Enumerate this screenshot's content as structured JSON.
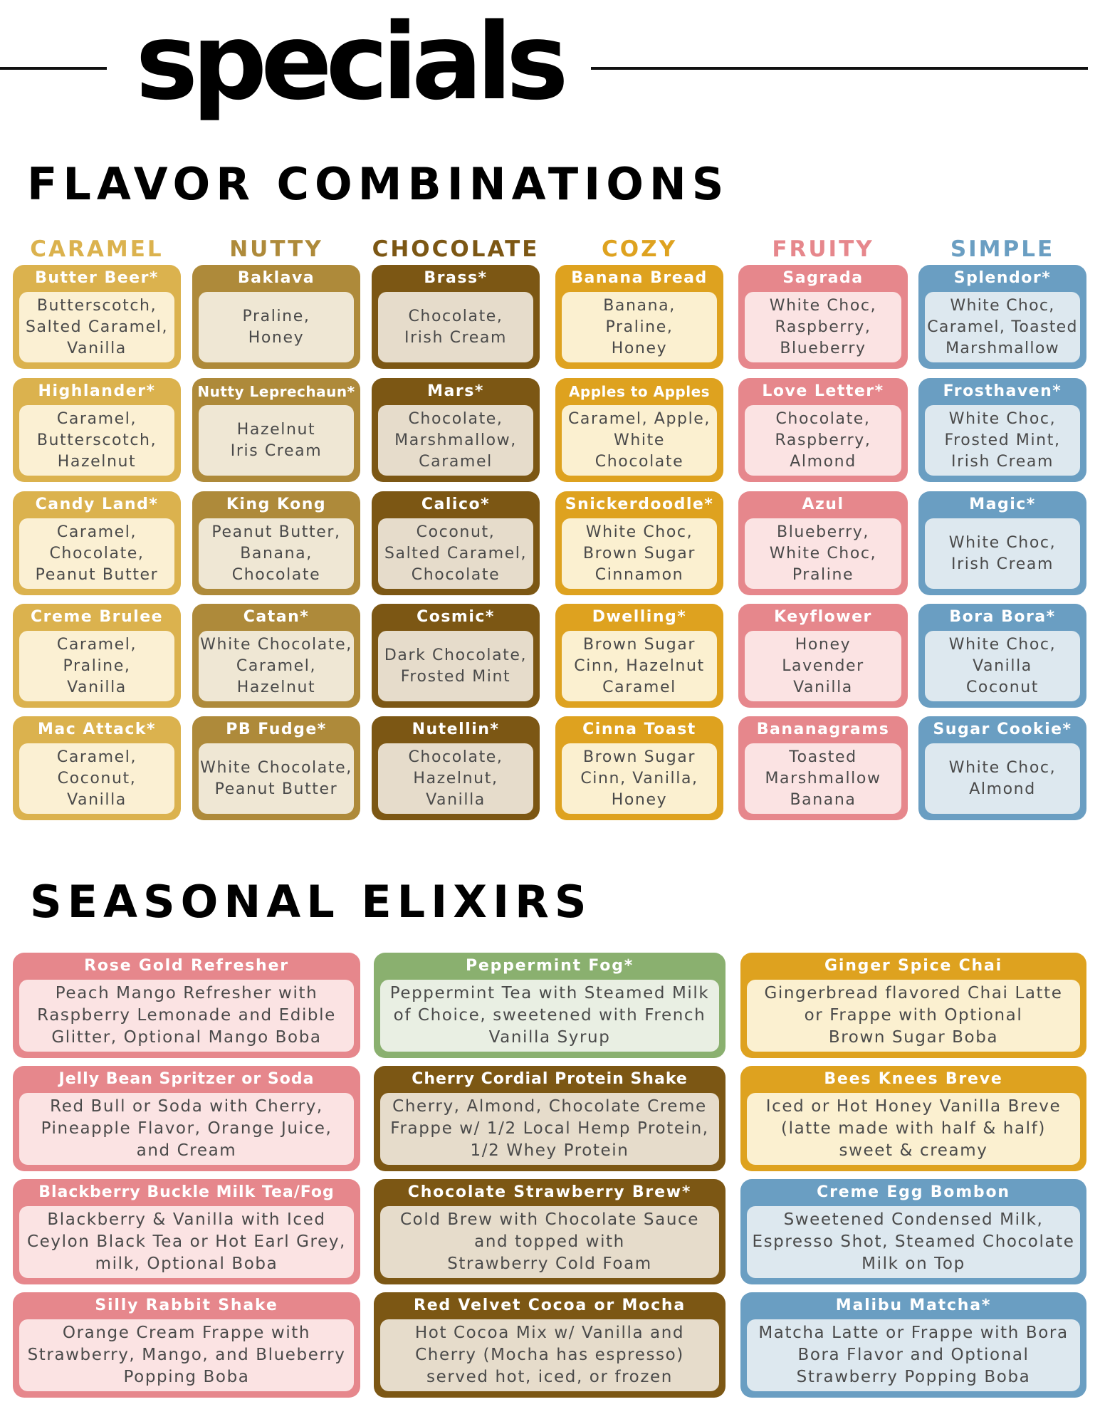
{
  "page": {
    "title": "specials",
    "flavor_section_title": "FLAVOR COMBINATIONS",
    "elixir_section_title": "SEASONAL ELIXIRS"
  },
  "colors": {
    "caramel": "#dbb24e",
    "caramel_light": "#fbf0d3",
    "nutty": "#ae8a3a",
    "nutty_light": "#efe7d4",
    "chocolate": "#7c5714",
    "chocolate_light": "#e6dccb",
    "cozy": "#dea21f",
    "cozy_light": "#fbf0d0",
    "fruity": "#e6878c",
    "fruity_light": "#fbe3e3",
    "simple": "#6a9ec2",
    "simple_light": "#dde8ef",
    "green": "#8ab06f",
    "green_light": "#e9efe3"
  },
  "categories": [
    {
      "name": "CARAMEL",
      "color": "#dbb24e",
      "light": "#fbf0d3",
      "items": [
        {
          "title": "Butter Beer*",
          "desc": "Butterscotch,\nSalted Caramel,\nVanilla"
        },
        {
          "title": "Highlander*",
          "desc": "Caramel,\nButterscotch,\nHazelnut"
        },
        {
          "title": "Candy Land*",
          "desc": "Caramel,\nChocolate,\nPeanut Butter"
        },
        {
          "title": "Creme Brulee",
          "desc": "Caramel,\nPraline,\nVanilla"
        },
        {
          "title": "Mac Attack*",
          "desc": "Caramel,\nCoconut,\nVanilla"
        }
      ]
    },
    {
      "name": "NUTTY",
      "color": "#ae8a3a",
      "light": "#efe7d4",
      "items": [
        {
          "title": "Baklava",
          "desc": "Praline,\nHoney"
        },
        {
          "title": "Nutty Leprechaun*",
          "desc": "Hazelnut\nIris Cream"
        },
        {
          "title": "King Kong",
          "desc": "Peanut Butter,\nBanana,\nChocolate"
        },
        {
          "title": "Catan*",
          "desc": "White Chocolate,\nCaramel,\nHazelnut"
        },
        {
          "title": "PB Fudge*",
          "desc": "White Chocolate,\nPeanut Butter"
        }
      ]
    },
    {
      "name": "CHOCOLATE",
      "color": "#7c5714",
      "light": "#e6dccb",
      "items": [
        {
          "title": "Brass*",
          "desc": "Chocolate,\nIrish Cream"
        },
        {
          "title": "Mars*",
          "desc": "Chocolate,\nMarshmallow,\nCaramel"
        },
        {
          "title": "Calico*",
          "desc": "Coconut,\nSalted Caramel,\nChocolate"
        },
        {
          "title": "Cosmic*",
          "desc": "Dark Chocolate,\nFrosted Mint"
        },
        {
          "title": "Nutellin*",
          "desc": "Chocolate,\nHazelnut,\nVanilla"
        }
      ]
    },
    {
      "name": "COZY",
      "color": "#dea21f",
      "light": "#fbf0d0",
      "items": [
        {
          "title": "Banana Bread",
          "desc": "Banana,\nPraline,\nHoney"
        },
        {
          "title": "Apples to Apples",
          "desc": "Caramel, Apple,\nWhite\nChocolate"
        },
        {
          "title": "Snickerdoodle*",
          "desc": "White Choc,\nBrown Sugar\nCinnamon"
        },
        {
          "title": "Dwelling*",
          "desc": "Brown Sugar\nCinn, Hazelnut\nCaramel"
        },
        {
          "title": "Cinna Toast",
          "desc": "Brown Sugar\nCinn, Vanilla,\nHoney"
        }
      ]
    },
    {
      "name": "FRUITY",
      "color": "#e6878c",
      "light": "#fbe3e3",
      "items": [
        {
          "title": "Sagrada",
          "desc": "White Choc,\nRaspberry,\nBlueberry"
        },
        {
          "title": "Love Letter*",
          "desc": "Chocolate,\nRaspberry,\nAlmond"
        },
        {
          "title": "Azul",
          "desc": "Blueberry,\nWhite Choc,\nPraline"
        },
        {
          "title": "Keyflower",
          "desc": "Honey\nLavender\nVanilla"
        },
        {
          "title": "Bananagrams",
          "desc": "Toasted\nMarshmallow\nBanana"
        }
      ]
    },
    {
      "name": "SIMPLE",
      "color": "#6a9ec2",
      "light": "#dde8ef",
      "items": [
        {
          "title": "Splendor*",
          "desc": "White Choc,\nCaramel, Toasted\nMarshmallow"
        },
        {
          "title": "Frosthaven*",
          "desc": "White Choc,\nFrosted Mint,\nIrish Cream"
        },
        {
          "title": "Magic*",
          "desc": "White Choc,\nIrish Cream"
        },
        {
          "title": "Bora Bora*",
          "desc": "White Choc,\nVanilla\nCoconut"
        },
        {
          "title": "Sugar Cookie*",
          "desc": "White Choc,\nAlmond"
        }
      ]
    }
  ],
  "elixirs": [
    [
      {
        "title": "Rose Gold Refresher",
        "desc": "Peach Mango Refresher with\nRaspberry Lemonade and Edible\nGlitter, Optional Mango Boba",
        "color": "#e6878c",
        "light": "#fbe3e3"
      },
      {
        "title": "Jelly  Bean Spritzer or Soda",
        "desc": "Red Bull or Soda with Cherry,\nPineapple Flavor, Orange Juice,\nand Cream",
        "color": "#e6878c",
        "light": "#fbe3e3"
      },
      {
        "title": "Blackberry Buckle Milk Tea/Fog",
        "desc": "Blackberry & Vanilla with Iced\nCeylon Black Tea or Hot Earl Grey,\nmilk, Optional Boba",
        "color": "#e6878c",
        "light": "#fbe3e3"
      },
      {
        "title": "Silly Rabbit Shake",
        "desc": "Orange Cream Frappe with\nStrawberry, Mango, and Blueberry\nPopping Boba",
        "color": "#e6878c",
        "light": "#fbe3e3"
      }
    ],
    [
      {
        "title": "Peppermint Fog*",
        "desc": "Peppermint Tea with Steamed Milk\nof Choice, sweetened with French\nVanilla Syrup",
        "color": "#8ab06f",
        "light": "#e9efe3"
      },
      {
        "title": "Cherry Cordial Protein Shake",
        "desc": "Cherry, Almond, Chocolate Creme\nFrappe w/ 1/2 Local Hemp Protein,\n1/2 Whey Protein",
        "color": "#7c5714",
        "light": "#e6dccb"
      },
      {
        "title": "Chocolate Strawberry Brew*",
        "desc": "Cold Brew with Chocolate Sauce\nand topped with\nStrawberry Cold Foam",
        "color": "#7c5714",
        "light": "#e6dccb"
      },
      {
        "title": "Red Velvet Cocoa or Mocha",
        "desc": "Hot Cocoa Mix w/ Vanilla and\nCherry (Mocha has espresso)\nserved hot, iced, or frozen",
        "color": "#7c5714",
        "light": "#e6dccb"
      }
    ],
    [
      {
        "title": "Ginger Spice Chai",
        "desc": "Gingerbread flavored Chai Latte\nor Frappe with Optional\nBrown Sugar Boba",
        "color": "#dea21f",
        "light": "#fbf0d0"
      },
      {
        "title": "Bees Knees Breve",
        "desc": "Iced or Hot Honey Vanilla Breve\n(latte made with half & half)\nsweet & creamy",
        "color": "#dea21f",
        "light": "#fbf0d0"
      },
      {
        "title": "Creme Egg Bombon",
        "desc": "Sweetened Condensed Milk,\nEspresso Shot, Steamed Chocolate\nMilk on Top",
        "color": "#6a9ec2",
        "light": "#dde8ef"
      },
      {
        "title": "Malibu Matcha*",
        "desc": "Matcha Latte or Frappe with Bora\nBora Flavor and Optional\nStrawberry Popping Boba",
        "color": "#6a9ec2",
        "light": "#dde8ef"
      }
    ]
  ]
}
